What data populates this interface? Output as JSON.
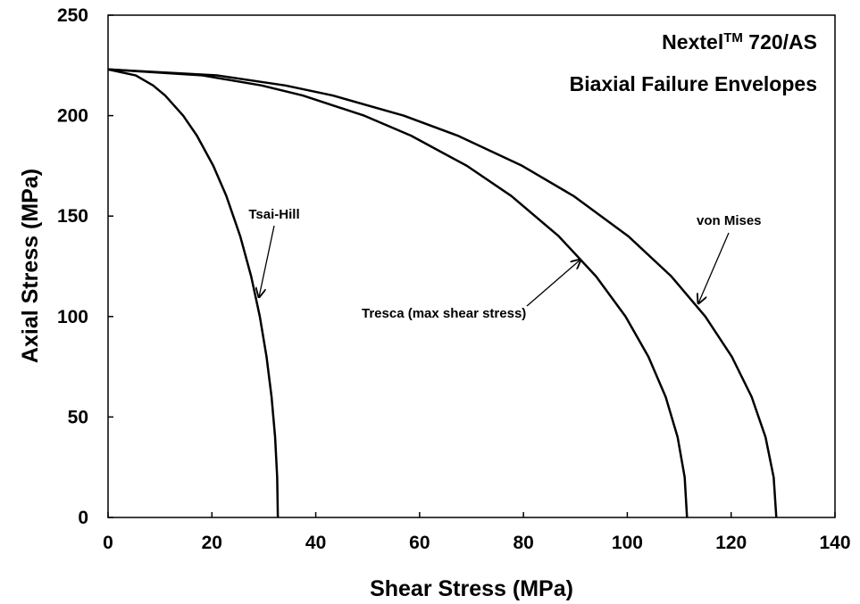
{
  "chart_data": {
    "type": "line",
    "title": [
      "Nextel",
      "TM",
      " 720/AS"
    ],
    "subtitle": "Biaxial Failure Envelopes",
    "x_label": "Shear Stress (MPa)",
    "y_label": "Axial Stress (MPa)",
    "xlim": [
      0,
      140
    ],
    "xticks": [
      0,
      20,
      40,
      60,
      80,
      100,
      120,
      140
    ],
    "ylim": [
      0,
      250
    ],
    "yticks": [
      0,
      50,
      100,
      150,
      200,
      250
    ],
    "grid": false,
    "series": [
      {
        "name": "Tsai-Hill",
        "color": "#000000",
        "x": [
          0,
          5.35,
          8.68,
          11.0,
          14.46,
          17.12,
          20.27,
          22.78,
          25.45,
          27.56,
          29.23,
          30.52,
          31.49,
          32.17,
          32.57,
          32.7
        ],
        "values": [
          223,
          220,
          215,
          210,
          200,
          190,
          175,
          160,
          140,
          120,
          100,
          80,
          60,
          40,
          20,
          0
        ]
      },
      {
        "name": "Tresca (max shear stress)",
        "color": "#000000",
        "x": [
          0,
          18.23,
          29.59,
          37.52,
          49.32,
          58.37,
          69.11,
          77.67,
          86.79,
          93.98,
          99.66,
          104.07,
          107.39,
          109.69,
          111.05,
          111.5
        ],
        "values": [
          223,
          220,
          215,
          210,
          200,
          190,
          175,
          160,
          140,
          120,
          100,
          80,
          60,
          40,
          20,
          0
        ]
      },
      {
        "name": "von Mises",
        "color": "#000000",
        "x": [
          0,
          21.04,
          34.16,
          43.31,
          56.92,
          67.37,
          79.77,
          89.65,
          100.18,
          108.48,
          115.03,
          120.13,
          123.95,
          126.62,
          128.19,
          128.7
        ],
        "values": [
          223,
          220,
          215,
          210,
          200,
          190,
          175,
          160,
          140,
          120,
          100,
          80,
          60,
          40,
          20,
          0
        ]
      }
    ]
  }
}
